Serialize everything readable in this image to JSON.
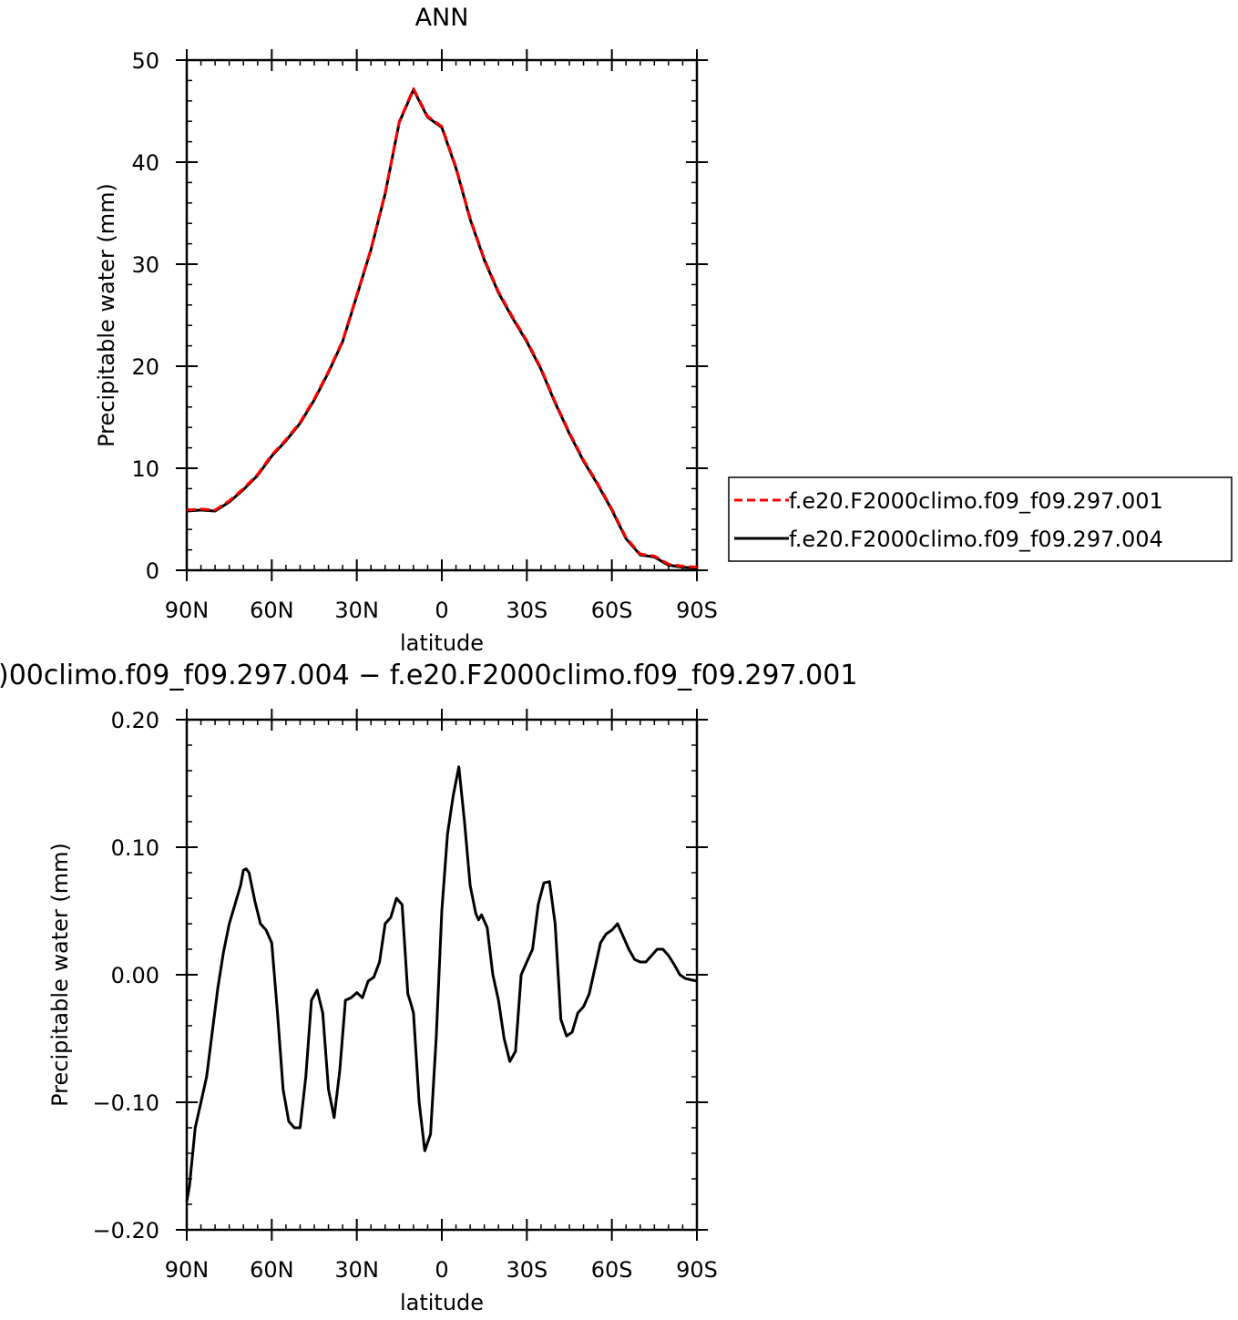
{
  "chart_data": [
    {
      "type": "line",
      "title": "ANN",
      "xlabel": "latitude",
      "ylabel": "Precipitable water (mm)",
      "xlim": [
        90,
        -90
      ],
      "ylim": [
        0,
        50
      ],
      "x_tick_values": [
        90,
        60,
        30,
        0,
        -30,
        -60,
        -90
      ],
      "x_tick_labels": [
        "90N",
        "60N",
        "30N",
        "0",
        "30S",
        "60S",
        "90S"
      ],
      "y_tick_values": [
        0,
        10,
        20,
        30,
        40,
        50
      ],
      "y_tick_labels": [
        "0",
        "10",
        "20",
        "30",
        "40",
        "50"
      ],
      "grid": false,
      "legend_position": "right",
      "x": [
        90,
        85,
        80,
        75,
        70,
        65,
        60,
        55,
        50,
        45,
        40,
        35,
        30,
        25,
        20,
        15,
        10,
        5,
        0,
        -5,
        -10,
        -15,
        -20,
        -25,
        -30,
        -35,
        -40,
        -45,
        -50,
        -55,
        -60,
        -65,
        -70,
        -75,
        -80,
        -85,
        -90
      ],
      "series": [
        {
          "name": "f.e20.F2000climo.f09_f09.297.001",
          "color": "#ff0000",
          "dash": "dashed",
          "values": [
            5.9,
            6.0,
            5.9,
            6.8,
            8.0,
            9.4,
            11.3,
            12.8,
            14.5,
            16.8,
            19.5,
            22.5,
            27.0,
            31.5,
            37.0,
            44.0,
            47.2,
            44.5,
            43.5,
            39.5,
            34.5,
            30.5,
            27.3,
            24.8,
            22.5,
            19.8,
            16.5,
            13.5,
            10.8,
            8.5,
            6.0,
            3.2,
            1.6,
            1.4,
            0.6,
            0.4,
            0.3
          ]
        },
        {
          "name": "f.e20.F2000climo.f09_f09.297.004",
          "color": "#000000",
          "dash": "solid",
          "values": [
            5.8,
            5.9,
            5.8,
            6.7,
            7.9,
            9.3,
            11.2,
            12.7,
            14.4,
            16.7,
            19.4,
            22.4,
            26.9,
            31.4,
            36.9,
            43.9,
            47.1,
            44.4,
            43.4,
            39.4,
            34.4,
            30.4,
            27.2,
            24.7,
            22.4,
            19.7,
            16.4,
            13.4,
            10.7,
            8.4,
            5.9,
            3.1,
            1.5,
            1.3,
            0.5,
            0.3,
            0.2
          ]
        }
      ]
    },
    {
      "type": "line",
      "title": ")00climo.f09_f09.297.004 − f.e20.F2000climo.f09_f09.297.001",
      "xlabel": "latitude",
      "ylabel": "Precipitable water (mm)",
      "xlim": [
        90,
        -90
      ],
      "ylim": [
        -0.2,
        0.2
      ],
      "x_tick_values": [
        90,
        60,
        30,
        0,
        -30,
        -60,
        -90
      ],
      "x_tick_labels": [
        "90N",
        "60N",
        "30N",
        "0",
        "30S",
        "60S",
        "90S"
      ],
      "y_tick_values": [
        0.2,
        0.1,
        0.0,
        -0.1,
        -0.2
      ],
      "y_tick_labels": [
        "0.20",
        "0.10",
        "0.00",
        "−0.10",
        "−0.20"
      ],
      "grid": false,
      "x": [
        90,
        89,
        87,
        85,
        83,
        81,
        79,
        77,
        75,
        73,
        71,
        70,
        69,
        68,
        66,
        64,
        62,
        60,
        58,
        56,
        54,
        52,
        50,
        48,
        46,
        44,
        42,
        40,
        38,
        36,
        34,
        32,
        30,
        28,
        26,
        24,
        22,
        20,
        18,
        16,
        14,
        12,
        11,
        10,
        8,
        6,
        4,
        2,
        0,
        -2,
        -4,
        -6,
        -8,
        -10,
        -12,
        -13,
        -14,
        -16,
        -18,
        -20,
        -22,
        -24,
        -26,
        -28,
        -30,
        -32,
        -34,
        -36,
        -38,
        -40,
        -42,
        -44,
        -46,
        -48,
        -50,
        -52,
        -54,
        -56,
        -58,
        -60,
        -62,
        -64,
        -66,
        -68,
        -70,
        -72,
        -74,
        -76,
        -78,
        -80,
        -82,
        -84,
        -86,
        -88,
        -90
      ],
      "series": [
        {
          "name": "",
          "color": "#000000",
          "values": [
            -0.178,
            -0.165,
            -0.12,
            -0.1,
            -0.08,
            -0.045,
            -0.01,
            0.018,
            0.04,
            0.055,
            0.07,
            0.082,
            0.083,
            0.08,
            0.058,
            0.04,
            0.035,
            0.025,
            -0.03,
            -0.09,
            -0.115,
            -0.12,
            -0.12,
            -0.08,
            -0.02,
            -0.012,
            -0.03,
            -0.09,
            -0.112,
            -0.075,
            -0.02,
            -0.018,
            -0.014,
            -0.018,
            -0.005,
            -0.002,
            0.01,
            0.04,
            0.045,
            0.06,
            0.055,
            -0.015,
            -0.022,
            -0.03,
            -0.1,
            -0.138,
            -0.125,
            -0.05,
            0.05,
            0.11,
            0.14,
            0.163,
            0.12,
            0.07,
            0.048,
            0.043,
            0.047,
            0.037,
            0.0,
            -0.02,
            -0.05,
            -0.068,
            -0.06,
            0.0,
            0.01,
            0.02,
            0.055,
            0.072,
            0.073,
            0.04,
            -0.035,
            -0.048,
            -0.045,
            -0.03,
            -0.025,
            -0.015,
            0.005,
            0.025,
            0.032,
            0.035,
            0.04,
            0.03,
            0.02,
            0.012,
            0.01,
            0.01,
            0.015,
            0.02,
            0.02,
            0.015,
            0.008,
            0.0,
            -0.003,
            -0.004,
            -0.005
          ]
        }
      ]
    }
  ]
}
